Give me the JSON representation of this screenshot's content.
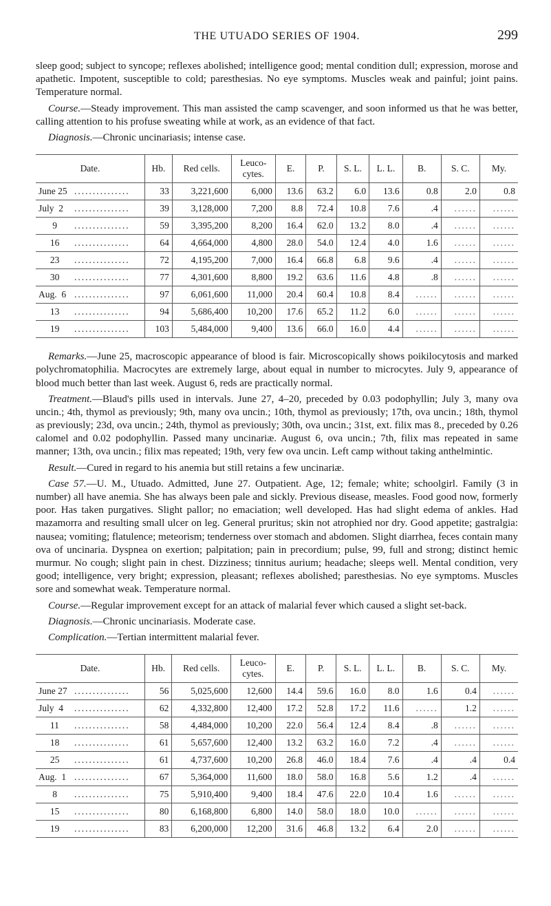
{
  "running_head": {
    "title": "THE UTUADO SERIES OF 1904.",
    "page": "299"
  },
  "intro1": "sleep good; subject to syncope; reflexes abolished; intelligence good; mental condition dull; expression, morose and apathetic. Impotent, susceptible to cold; paresthesias. No eye symptoms. Muscles weak and painful; joint pains. Temperature normal.",
  "intro2_label": "Course.",
  "intro2_body": "—Steady improvement. This man assisted the camp scavenger, and soon informed us that he was better, calling attention to his profuse sweating while at work, as an evidence of that fact.",
  "intro3_label": "Diagnosis.",
  "intro3_body": "—Chronic uncinariasis; intense case.",
  "table1": {
    "columns": [
      "Date.",
      "Hb.",
      "Red cells.",
      "Leuco-cytes.",
      "E.",
      "P.",
      "S. L.",
      "L. L.",
      "B.",
      "S. C.",
      "My."
    ],
    "rows": [
      {
        "date": "June 25",
        "hb": "33",
        "rc": "3,221,600",
        "lc": "6,000",
        "e": "13.6",
        "p": "63.2",
        "sl": "6.0",
        "ll": "13.6",
        "b": "0.8",
        "sc": "2.0",
        "my": "0.8"
      },
      {
        "date": "July  2",
        "hb": "39",
        "rc": "3,128,000",
        "lc": "7,200",
        "e": "8.8",
        "p": "72.4",
        "sl": "10.8",
        "ll": "7.6",
        "b": ".4",
        "sc": "",
        "my": ""
      },
      {
        "date": "      9",
        "hb": "59",
        "rc": "3,395,200",
        "lc": "8,200",
        "e": "16.4",
        "p": "62.0",
        "sl": "13.2",
        "ll": "8.0",
        "b": ".4",
        "sc": "",
        "my": ""
      },
      {
        "date": "     16",
        "hb": "64",
        "rc": "4,664,000",
        "lc": "4,800",
        "e": "28.0",
        "p": "54.0",
        "sl": "12.4",
        "ll": "4.0",
        "b": "1.6",
        "sc": "",
        "my": ""
      },
      {
        "date": "     23",
        "hb": "72",
        "rc": "4,195,200",
        "lc": "7,000",
        "e": "16.4",
        "p": "66.8",
        "sl": "6.8",
        "ll": "9.6",
        "b": ".4",
        "sc": "",
        "my": ""
      },
      {
        "date": "     30",
        "hb": "77",
        "rc": "4,301,600",
        "lc": "8,800",
        "e": "19.2",
        "p": "63.6",
        "sl": "11.6",
        "ll": "4.8",
        "b": ".8",
        "sc": "",
        "my": ""
      },
      {
        "date": "Aug.  6",
        "hb": "97",
        "rc": "6,061,600",
        "lc": "11,000",
        "e": "20.4",
        "p": "60.4",
        "sl": "10.8",
        "ll": "8.4",
        "b": "",
        "sc": "",
        "my": ""
      },
      {
        "date": "     13",
        "hb": "94",
        "rc": "5,686,400",
        "lc": "10,200",
        "e": "17.6",
        "p": "65.2",
        "sl": "11.2",
        "ll": "6.0",
        "b": "",
        "sc": "",
        "my": ""
      },
      {
        "date": "     19",
        "hb": "103",
        "rc": "5,484,000",
        "lc": "9,400",
        "e": "13.6",
        "p": "66.0",
        "sl": "16.0",
        "ll": "4.4",
        "b": "",
        "sc": "",
        "my": ""
      }
    ]
  },
  "remarks_label": "Remarks.",
  "remarks_body": "—June 25, macroscopic appearance of blood is fair. Microscopically shows poikilocytosis and marked polychromatophilia. Macrocytes are extremely large, about equal in number to microcytes. July 9, appearance of blood much better than last week. August 6, reds are practically normal.",
  "treatment_label": "Treatment.",
  "treatment_body": "—Blaud's pills used in intervals. June 27, 4–20, preceded by 0.03 podophyllin; July 3, many ova uncin.; 4th, thymol as previously; 9th, many ova uncin.; 10th, thymol as previously; 17th, ova uncin.; 18th, thymol as previously; 23d, ova uncin.; 24th, thymol as previously; 30th, ova uncin.; 31st, ext. filix mas 8., preceded by 0.26 calomel and 0.02 podophyllin. Passed many uncinariæ. August 6, ova uncin.; 7th, filix mas repeated in same manner; 13th, ova uncin.; filix mas repeated; 19th, very few ova uncin. Left camp without taking anthelmintic.",
  "result_label": "Result.",
  "result_body": "—Cured in regard to his anemia but still retains a few uncinariæ.",
  "case57_label": "Case 57.",
  "case57_body": "—U. M., Utuado. Admitted, June 27. Outpatient. Age, 12; female; white; schoolgirl. Family (3 in number) all have anemia. She has always been pale and sickly. Previous disease, measles. Food good now, formerly poor. Has taken purgatives. Slight pallor; no emaciation; well developed. Has had slight edema of ankles. Had mazamorra and resulting small ulcer on leg. General pruritus; skin not atrophied nor dry. Good appetite; gastralgia: nausea; vomiting; flatulence; meteorism; tenderness over stomach and abdomen. Slight diarrhea, feces contain many ova of uncinaria. Dyspnea on exertion; palpitation; pain in precordium; pulse, 99, full and strong; distinct hemic murmur. No cough; slight pain in chest. Dizziness; tinnitus aurium; headache; sleeps well. Mental condition, very good; intelligence, very bright; expression, pleasant; reflexes abolished; paresthesias. No eye symptoms. Muscles sore and somewhat weak. Temperature normal.",
  "course2_label": "Course.",
  "course2_body": "—Regular improvement except for an attack of malarial fever which caused a slight set-back.",
  "diag2_label": "Diagnosis.",
  "diag2_body": "—Chronic uncinariasis. Moderate case.",
  "comp2_label": "Complication.",
  "comp2_body": "—Tertian intermittent malarial fever.",
  "table2": {
    "columns": [
      "Date.",
      "Hb.",
      "Red cells.",
      "Leuco-cytes.",
      "E.",
      "P.",
      "S. L.",
      "L. L.",
      "B.",
      "S. C.",
      "My."
    ],
    "rows": [
      {
        "date": "June 27",
        "hb": "56",
        "rc": "5,025,600",
        "lc": "12,600",
        "e": "14.4",
        "p": "59.6",
        "sl": "16.0",
        "ll": "8.0",
        "b": "1.6",
        "sc": "0.4",
        "my": ""
      },
      {
        "date": "July  4",
        "hb": "62",
        "rc": "4,332,800",
        "lc": "12,400",
        "e": "17.2",
        "p": "52.8",
        "sl": "17.2",
        "ll": "11.6",
        "b": "",
        "sc": "1.2",
        "my": ""
      },
      {
        "date": "     11",
        "hb": "58",
        "rc": "4,484,000",
        "lc": "10,200",
        "e": "22.0",
        "p": "56.4",
        "sl": "12.4",
        "ll": "8.4",
        "b": ".8",
        "sc": "",
        "my": ""
      },
      {
        "date": "     18",
        "hb": "61",
        "rc": "5,657,600",
        "lc": "12,400",
        "e": "13.2",
        "p": "63.2",
        "sl": "16.0",
        "ll": "7.2",
        "b": ".4",
        "sc": "",
        "my": ""
      },
      {
        "date": "     25",
        "hb": "61",
        "rc": "4,737,600",
        "lc": "10,200",
        "e": "26.8",
        "p": "46.0",
        "sl": "18.4",
        "ll": "7.6",
        "b": ".4",
        "sc": ".4",
        "my": "0.4"
      },
      {
        "date": "Aug.  1",
        "hb": "67",
        "rc": "5,364,000",
        "lc": "11,600",
        "e": "18.0",
        "p": "58.0",
        "sl": "16.8",
        "ll": "5.6",
        "b": "1.2",
        "sc": ".4",
        "my": ""
      },
      {
        "date": "      8",
        "hb": "75",
        "rc": "5,910,400",
        "lc": "9,400",
        "e": "18.4",
        "p": "47.6",
        "sl": "22.0",
        "ll": "10.4",
        "b": "1.6",
        "sc": "",
        "my": ""
      },
      {
        "date": "     15",
        "hb": "80",
        "rc": "6,168,800",
        "lc": "6,800",
        "e": "14.0",
        "p": "58.0",
        "sl": "18.0",
        "ll": "10.0",
        "b": "",
        "sc": "",
        "my": ""
      },
      {
        "date": "     19",
        "hb": "83",
        "rc": "6,200,000",
        "lc": "12,200",
        "e": "31.6",
        "p": "46.8",
        "sl": "13.2",
        "ll": "6.4",
        "b": "2.0",
        "sc": "",
        "my": ""
      }
    ]
  }
}
